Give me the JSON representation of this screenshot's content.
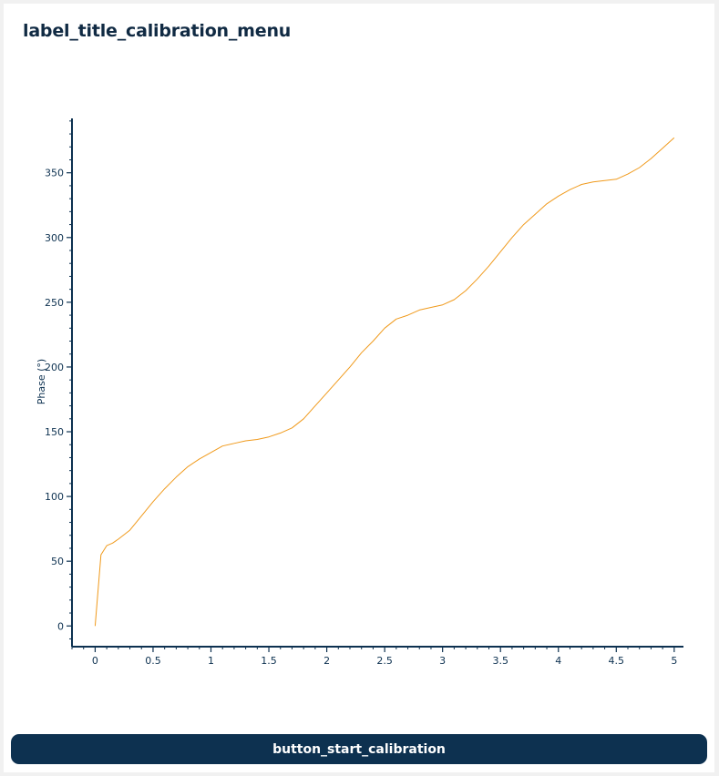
{
  "header": {
    "title": "label_title_calibration_menu"
  },
  "actions": {
    "start_calibration_label": "button_start_calibration"
  },
  "colors": {
    "axis": "#0d3150",
    "series": "#f09a1c",
    "button": "#0d3150"
  },
  "chart_data": {
    "type": "line",
    "xlabel": "",
    "ylabel": "Phase (°)",
    "xlim": [
      -0.2,
      5.08
    ],
    "ylim": [
      -16,
      392
    ],
    "x_ticks": [
      0,
      0.5,
      1,
      1.5,
      2,
      2.5,
      3,
      3.5,
      4,
      4.5,
      5
    ],
    "x_tick_labels": [
      "0",
      "0.5",
      "1",
      "1.5",
      "2",
      "2.5",
      "3",
      "3.5",
      "4",
      "4.5",
      "5"
    ],
    "y_ticks": [
      0,
      50,
      100,
      150,
      200,
      250,
      300,
      350
    ],
    "y_tick_labels": [
      "0",
      "50",
      "100",
      "150",
      "200",
      "250",
      "300",
      "350"
    ],
    "x_minor_step": 0.1,
    "y_minor_step": 10,
    "grid": false,
    "series": [
      {
        "name": "",
        "x": [
          0,
          0.05,
          0.1,
          0.15,
          0.2,
          0.3,
          0.4,
          0.5,
          0.6,
          0.7,
          0.8,
          0.9,
          1.0,
          1.1,
          1.2,
          1.3,
          1.4,
          1.5,
          1.6,
          1.7,
          1.8,
          1.9,
          2.0,
          2.1,
          2.2,
          2.3,
          2.4,
          2.5,
          2.6,
          2.7,
          2.8,
          2.9,
          3.0,
          3.1,
          3.2,
          3.3,
          3.4,
          3.5,
          3.6,
          3.7,
          3.8,
          3.9,
          4.0,
          4.1,
          4.2,
          4.3,
          4.4,
          4.5,
          4.6,
          4.7,
          4.8,
          4.9,
          5.0
        ],
        "y": [
          0,
          55,
          62,
          64,
          67,
          74,
          85,
          96,
          106,
          115,
          123,
          129,
          134,
          139,
          141,
          143,
          144,
          146,
          149,
          153,
          160,
          170,
          180,
          190,
          200,
          211,
          220,
          230,
          237,
          240,
          244,
          246,
          248,
          252,
          259,
          268,
          278,
          289,
          300,
          310,
          318,
          326,
          332,
          337,
          341,
          343,
          344,
          345,
          349,
          354,
          361,
          369,
          377
        ]
      }
    ]
  }
}
